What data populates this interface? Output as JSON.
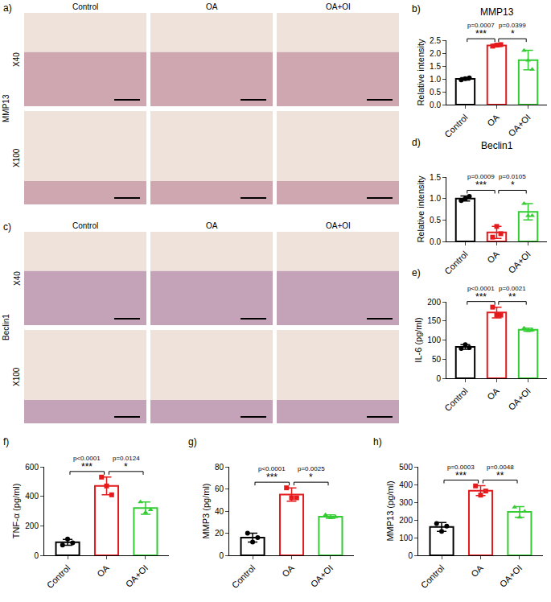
{
  "image_panels": [
    {
      "panel": "a)",
      "stain": "MMP13",
      "columns": [
        "Control",
        "OA",
        "OA+OI"
      ],
      "rows": [
        "X40",
        "X100"
      ]
    },
    {
      "panel": "c)",
      "stain": "Beclin1",
      "columns": [
        "Control",
        "OA",
        "OA+OI"
      ],
      "rows": [
        "X40",
        "X100"
      ]
    }
  ],
  "chart_data": [
    {
      "type": "bar",
      "panel": "b)",
      "title": "MMP13",
      "y_label": "Relative intensity",
      "grid": false,
      "ylim": [
        0,
        2.5
      ],
      "yticks": [
        {
          "value": 0,
          "label": "0.0"
        },
        0.5,
        {
          "value": 1,
          "label": "1.0"
        },
        1.5,
        {
          "value": 2,
          "label": "2.0"
        },
        2.5
      ],
      "series": [
        {
          "name": "Control",
          "color": "#000000",
          "marker": "circle",
          "values": [
            1.0
          ],
          "error": [
            0.05
          ],
          "points": [
            0.96,
            1.01,
            1.04
          ]
        },
        {
          "name": "OA",
          "color": "#e41a1c",
          "marker": "square",
          "values": [
            2.3
          ],
          "error": [
            0.04
          ],
          "points": [
            2.27,
            2.31,
            2.33
          ]
        },
        {
          "name": "OA+OI",
          "color": "#33cc33",
          "marker": "triangle-up",
          "values": [
            1.73
          ],
          "error": [
            0.38
          ],
          "points": [
            2.1,
            1.72,
            1.37
          ]
        }
      ],
      "comparisons": [
        {
          "between": [
            "Control",
            "OA"
          ],
          "stars": "***",
          "p": "p=0.0007"
        },
        {
          "between": [
            "OA",
            "OA+OI"
          ],
          "stars": "*",
          "p": "p=0.0399"
        }
      ]
    },
    {
      "type": "bar",
      "panel": "d)",
      "title": "Beclin1",
      "y_label": "Relative intensity",
      "grid": false,
      "ylim": [
        0,
        1.5
      ],
      "yticks": [
        {
          "value": 0,
          "label": "0.0"
        },
        0.5,
        {
          "value": 1,
          "label": "1.0"
        },
        1.5
      ],
      "series": [
        {
          "name": "Control",
          "color": "#000000",
          "marker": "circle",
          "values": [
            1.0
          ],
          "error": [
            0.06
          ],
          "points": [
            0.95,
            1.0,
            1.05
          ]
        },
        {
          "name": "OA",
          "color": "#e41a1c",
          "marker": "square",
          "values": [
            0.21
          ],
          "error": [
            0.14
          ],
          "points": [
            0.1,
            0.35,
            0.18
          ]
        },
        {
          "name": "OA+OI",
          "color": "#33cc33",
          "marker": "triangle-up",
          "values": [
            0.69
          ],
          "error": [
            0.19
          ],
          "points": [
            0.88,
            0.6,
            0.6
          ]
        }
      ],
      "comparisons": [
        {
          "between": [
            "Control",
            "OA"
          ],
          "stars": "***",
          "p": "p=0.0009"
        },
        {
          "between": [
            "OA",
            "OA+OI"
          ],
          "stars": "*",
          "p": "p=0.0105"
        }
      ]
    },
    {
      "type": "bar",
      "panel": "e)",
      "y_label": "IL-6 (pg/ml)",
      "grid": false,
      "ylim": [
        0,
        200
      ],
      "yticks": [
        0,
        50,
        100,
        150,
        200
      ],
      "series": [
        {
          "name": "Control",
          "color": "#000000",
          "marker": "circle",
          "values": [
            82
          ],
          "error": [
            6
          ],
          "points": [
            78,
            88,
            80
          ]
        },
        {
          "name": "OA",
          "color": "#e41a1c",
          "marker": "square",
          "values": [
            172
          ],
          "error": [
            14
          ],
          "points": [
            186,
            165,
            165
          ]
        },
        {
          "name": "OA+OI",
          "color": "#33cc33",
          "marker": "triangle-up",
          "values": [
            127
          ],
          "error": [
            4
          ],
          "points": [
            131,
            124,
            126
          ]
        }
      ],
      "comparisons": [
        {
          "between": [
            "Control",
            "OA"
          ],
          "stars": "***",
          "p": "p<0.0001"
        },
        {
          "between": [
            "OA",
            "OA+OI"
          ],
          "stars": "**",
          "p": "p=0.0021"
        }
      ]
    },
    {
      "type": "bar",
      "panel": "f)",
      "y_label": "TNF-α (pg/ml)",
      "grid": false,
      "ylim": [
        0,
        600
      ],
      "yticks": [
        0,
        200,
        400,
        600
      ],
      "series": [
        {
          "name": "Control",
          "color": "#000000",
          "marker": "circle",
          "values": [
            88
          ],
          "error": [
            20
          ],
          "points": [
            70,
            110,
            84
          ]
        },
        {
          "name": "OA",
          "color": "#e41a1c",
          "marker": "square",
          "values": [
            470
          ],
          "error": [
            60
          ],
          "points": [
            530,
            470,
            410
          ]
        },
        {
          "name": "OA+OI",
          "color": "#33cc33",
          "marker": "triangle-up",
          "values": [
            320
          ],
          "error": [
            42
          ],
          "points": [
            362,
            290,
            308
          ]
        }
      ],
      "comparisons": [
        {
          "between": [
            "Control",
            "OA"
          ],
          "stars": "***",
          "p": "p<0.0001"
        },
        {
          "between": [
            "OA",
            "OA+OI"
          ],
          "stars": "*",
          "p": "p=0.0124"
        }
      ]
    },
    {
      "type": "bar",
      "panel": "g)",
      "y_label": "MMP3 (pg/ml)",
      "grid": false,
      "ylim": [
        0,
        80
      ],
      "yticks": [
        0,
        20,
        40,
        60,
        80
      ],
      "series": [
        {
          "name": "Control",
          "color": "#000000",
          "marker": "circle",
          "values": [
            16
          ],
          "error": [
            4
          ],
          "points": [
            20,
            12,
            16
          ]
        },
        {
          "name": "OA",
          "color": "#e41a1c",
          "marker": "square",
          "values": [
            55
          ],
          "error": [
            6
          ],
          "points": [
            61,
            52,
            52
          ]
        },
        {
          "name": "OA+OI",
          "color": "#33cc33",
          "marker": "triangle-up",
          "values": [
            35
          ],
          "error": [
            1.5
          ],
          "points": [
            36.5,
            33.8,
            34.7
          ]
        }
      ],
      "comparisons": [
        {
          "between": [
            "Control",
            "OA"
          ],
          "stars": "***",
          "p": "p<0.0001"
        },
        {
          "between": [
            "OA",
            "OA+OI"
          ],
          "stars": "*",
          "p": "p=0.0025"
        }
      ]
    },
    {
      "type": "bar",
      "panel": "h)",
      "y_label": "MMP13 (pg/ml)",
      "grid": false,
      "ylim": [
        0,
        500
      ],
      "yticks": [
        0,
        100,
        200,
        300,
        400,
        500
      ],
      "series": [
        {
          "name": "Control",
          "color": "#000000",
          "marker": "circle",
          "values": [
            160
          ],
          "error": [
            25
          ],
          "points": [
            180,
            135,
            165
          ]
        },
        {
          "name": "OA",
          "color": "#e41a1c",
          "marker": "square",
          "values": [
            365
          ],
          "error": [
            28
          ],
          "points": [
            392,
            340,
            363
          ]
        },
        {
          "name": "OA+OI",
          "color": "#33cc33",
          "marker": "triangle-up",
          "values": [
            245
          ],
          "error": [
            30
          ],
          "points": [
            272,
            215,
            248
          ]
        }
      ],
      "comparisons": [
        {
          "between": [
            "Control",
            "OA"
          ],
          "stars": "***",
          "p": "p=0.0003"
        },
        {
          "between": [
            "OA",
            "OA+OI"
          ],
          "stars": "**",
          "p": "p=0.0048"
        }
      ]
    }
  ]
}
